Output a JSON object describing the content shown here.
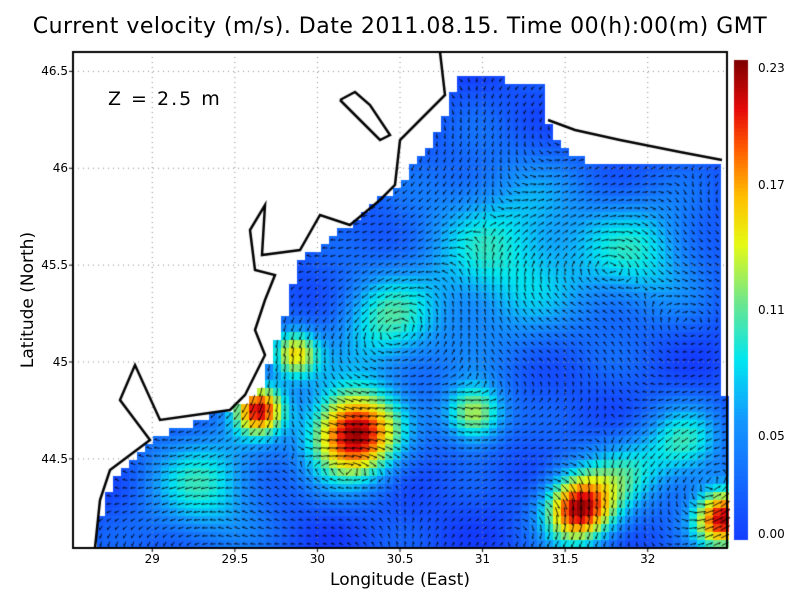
{
  "title": "Current velocity (m/s). Date 2011.08.15. Time 00(h):00(m) GMT",
  "depth_label": "Z = 2.5 m",
  "chart_data": {
    "type": "heatmap",
    "subtype": "vector field over color map",
    "title": "Current velocity (m/s). Date 2011.08.15. Time 00(h):00(m) GMT",
    "xlabel": "Longitude (East)",
    "ylabel": "Latitude (North)",
    "xlim": [
      28.52,
      32.48
    ],
    "ylim": [
      44.04,
      46.6
    ],
    "xticks": [
      "29",
      "29.5",
      "30",
      "30.5",
      "31",
      "31.5",
      "32"
    ],
    "xtick_values": [
      29,
      29.5,
      30,
      30.5,
      31,
      31.5,
      32
    ],
    "yticks": [
      "46.5",
      "46",
      "45.5",
      "45",
      "44.5"
    ],
    "ytick_values": [
      46.5,
      46,
      45.5,
      45,
      44.5
    ],
    "grid": true,
    "colorbar": {
      "range": [
        0,
        0.23
      ],
      "ticks": [
        "0.23",
        "0.17",
        "0.11",
        "0.05",
        "0.00"
      ],
      "tick_values": [
        0.23,
        0.17,
        0.11,
        0.05,
        0.0
      ],
      "colormap": "jet",
      "placement": "right"
    },
    "annotation": "Z = 2.5 m",
    "colors": {
      "coastline": "#000000",
      "arrows": "#000000",
      "land": "#ffffff"
    }
  }
}
